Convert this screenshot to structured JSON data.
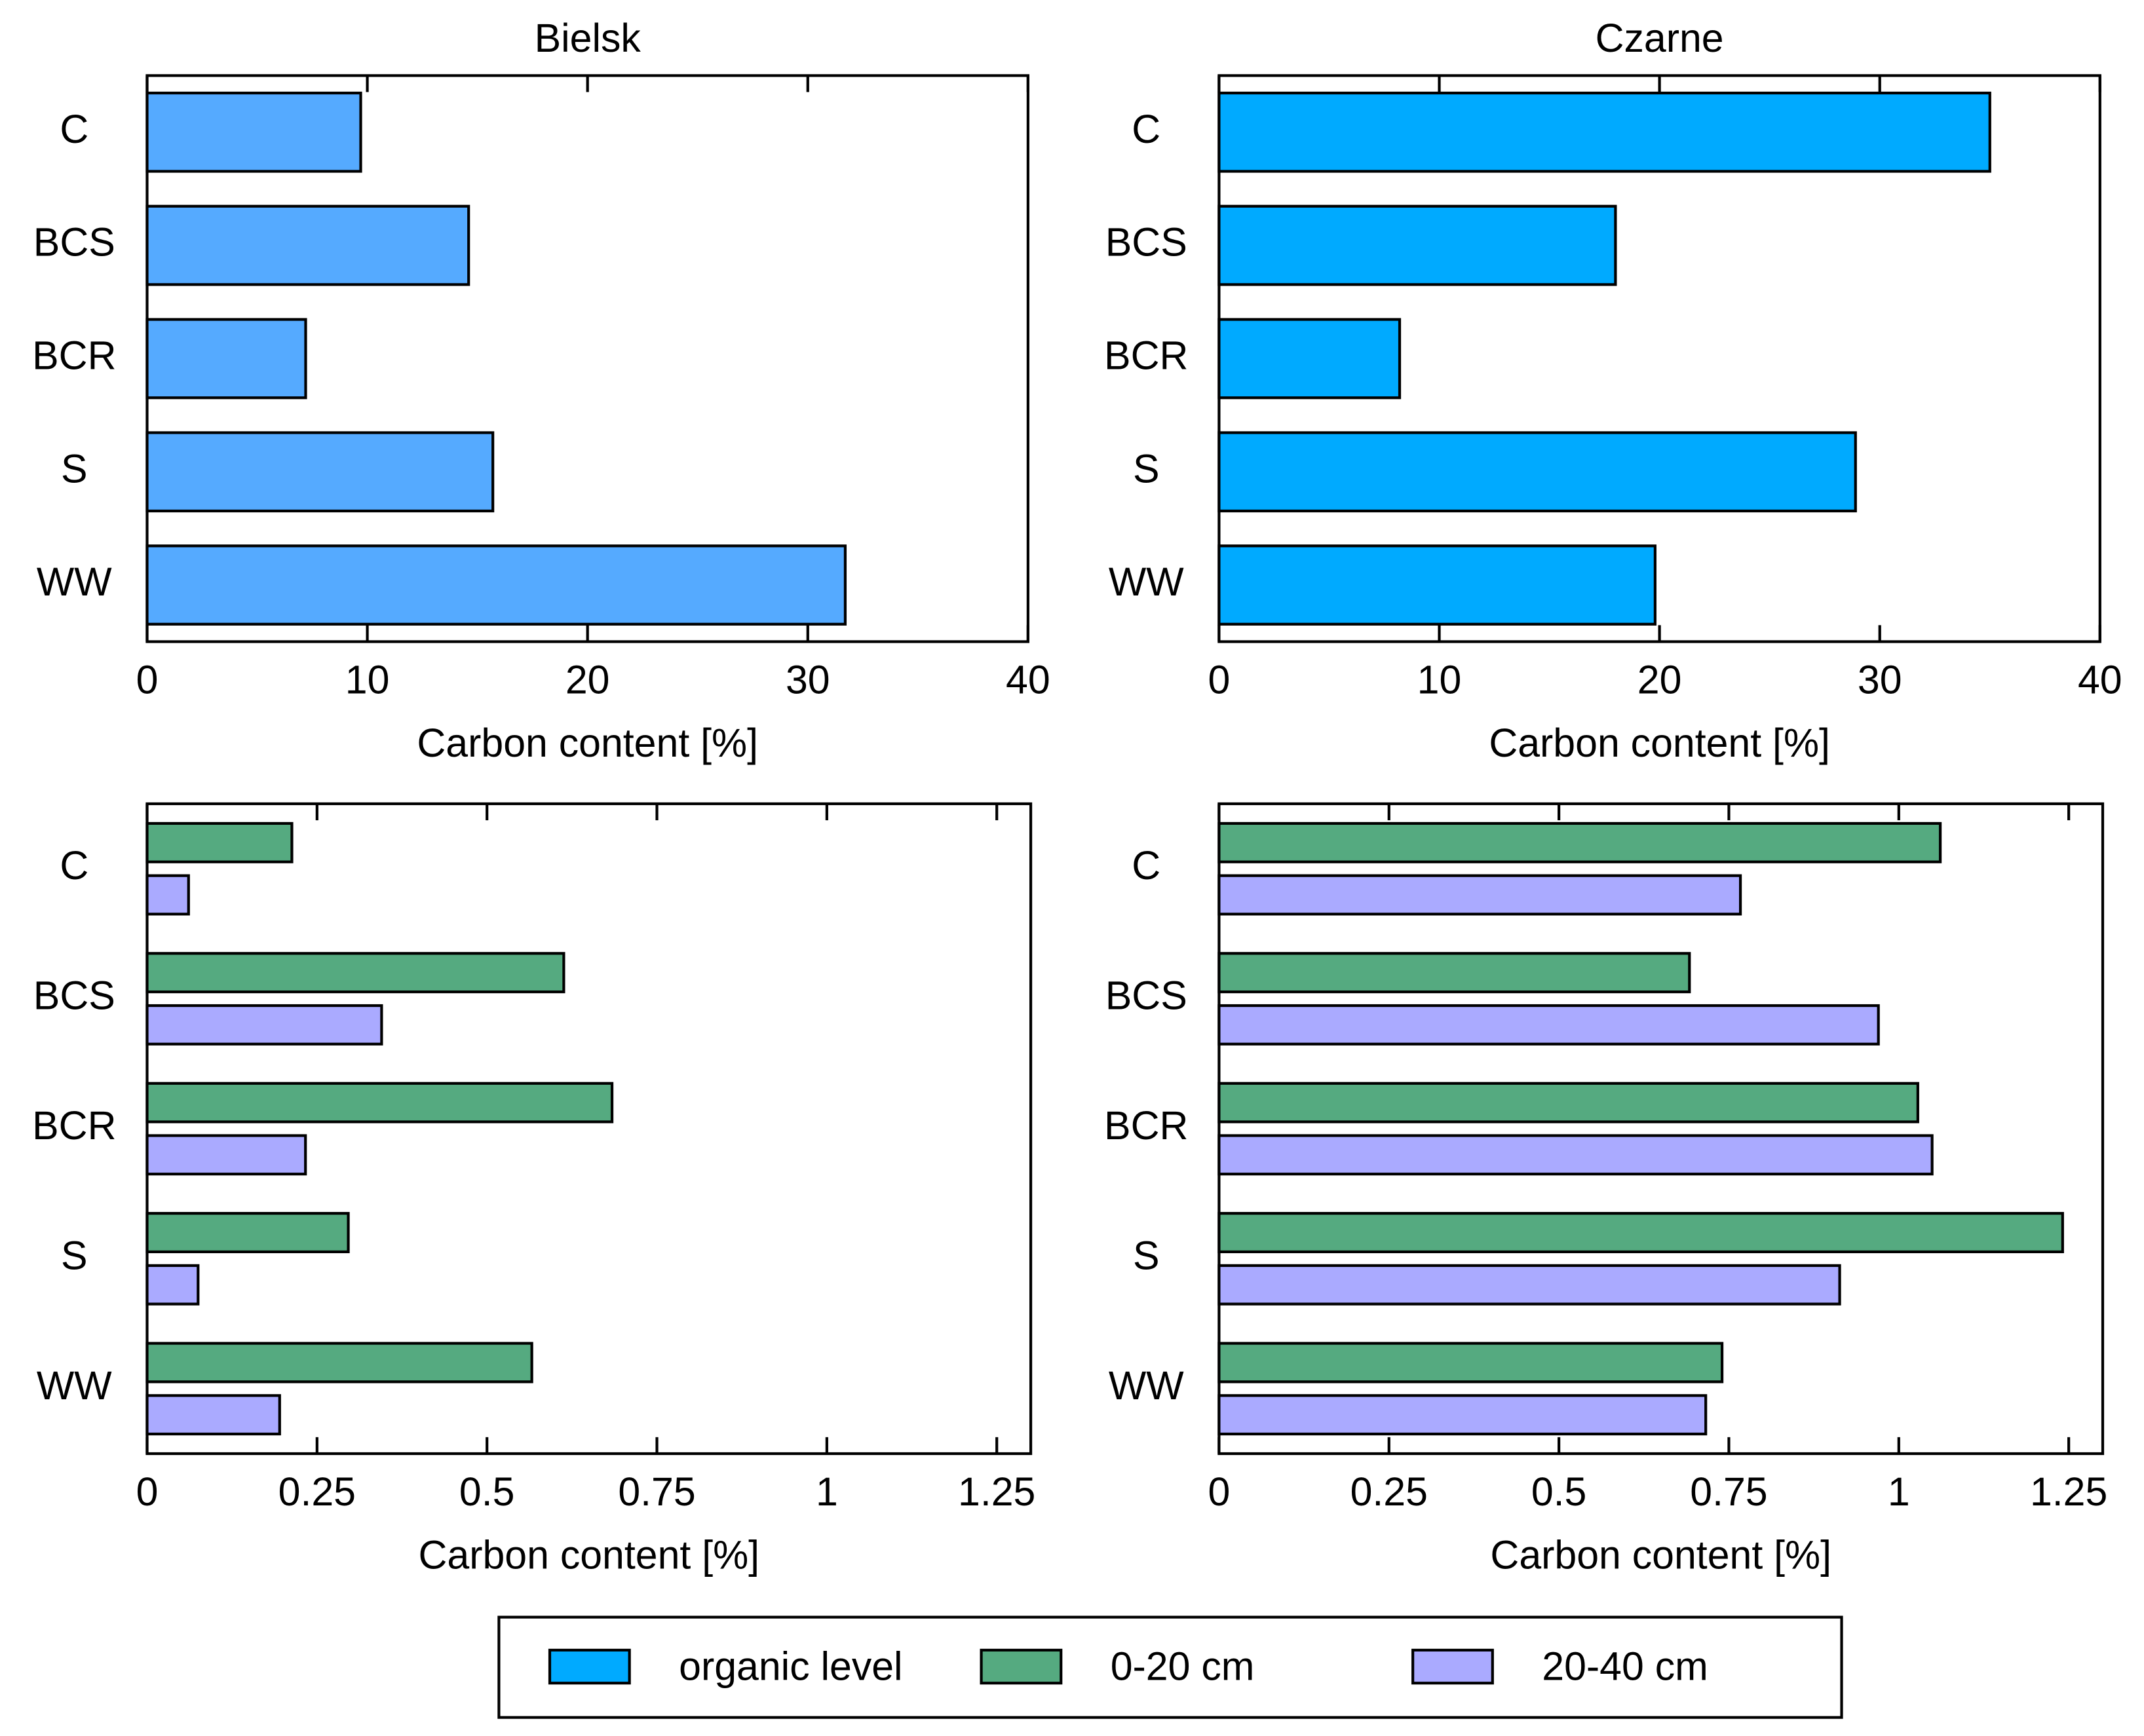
{
  "chart_data": [
    {
      "type": "bar",
      "orientation": "horizontal",
      "title": "Bielsk",
      "x_label": "Carbon content [%]",
      "categories": [
        "C",
        "BCS",
        "BCR",
        "S",
        "WW"
      ],
      "series": [
        {
          "name": "organic level",
          "color": "#55aaff",
          "values": [
            9.7,
            14.6,
            7.2,
            15.7,
            31.7
          ]
        }
      ],
      "xlim": [
        0,
        40
      ],
      "xticks": [
        0,
        10,
        20,
        30,
        40
      ]
    },
    {
      "type": "bar",
      "orientation": "horizontal",
      "title": "Czarne",
      "x_label": "Carbon content [%]",
      "categories": [
        "C",
        "BCS",
        "BCR",
        "S",
        "WW"
      ],
      "series": [
        {
          "name": "organic level",
          "color": "#00aaff",
          "values": [
            35.0,
            18.0,
            8.2,
            28.9,
            19.8
          ]
        }
      ],
      "xlim": [
        0,
        40
      ],
      "xticks": [
        0,
        10,
        20,
        30,
        40
      ]
    },
    {
      "type": "bar",
      "orientation": "horizontal",
      "x_label": "Carbon content [%]",
      "categories": [
        "C",
        "BCS",
        "BCR",
        "S",
        "WW"
      ],
      "series": [
        {
          "name": "0-20 cm",
          "color": "#55aa80",
          "values": [
            0.213,
            0.613,
            0.684,
            0.296,
            0.566
          ]
        },
        {
          "name": "20-40 cm",
          "color": "#aaaaff",
          "values": [
            0.061,
            0.345,
            0.233,
            0.075,
            0.195
          ]
        }
      ],
      "xlim": [
        0,
        1.3
      ],
      "xticks": [
        0,
        0.25,
        0.5,
        0.75,
        1,
        1.25
      ]
    },
    {
      "type": "bar",
      "orientation": "horizontal",
      "x_label": "Carbon content [%]",
      "categories": [
        "C",
        "BCS",
        "BCR",
        "S",
        "WW"
      ],
      "series": [
        {
          "name": "0-20 cm",
          "color": "#55aa80",
          "values": [
            1.061,
            0.692,
            1.028,
            1.241,
            0.74
          ]
        },
        {
          "name": "20-40 cm",
          "color": "#aaaaff",
          "values": [
            0.767,
            0.97,
            1.049,
            0.913,
            0.716
          ]
        }
      ],
      "xlim": [
        0,
        1.3
      ],
      "xticks": [
        0,
        0.25,
        0.5,
        0.75,
        1,
        1.25
      ]
    }
  ]
}
